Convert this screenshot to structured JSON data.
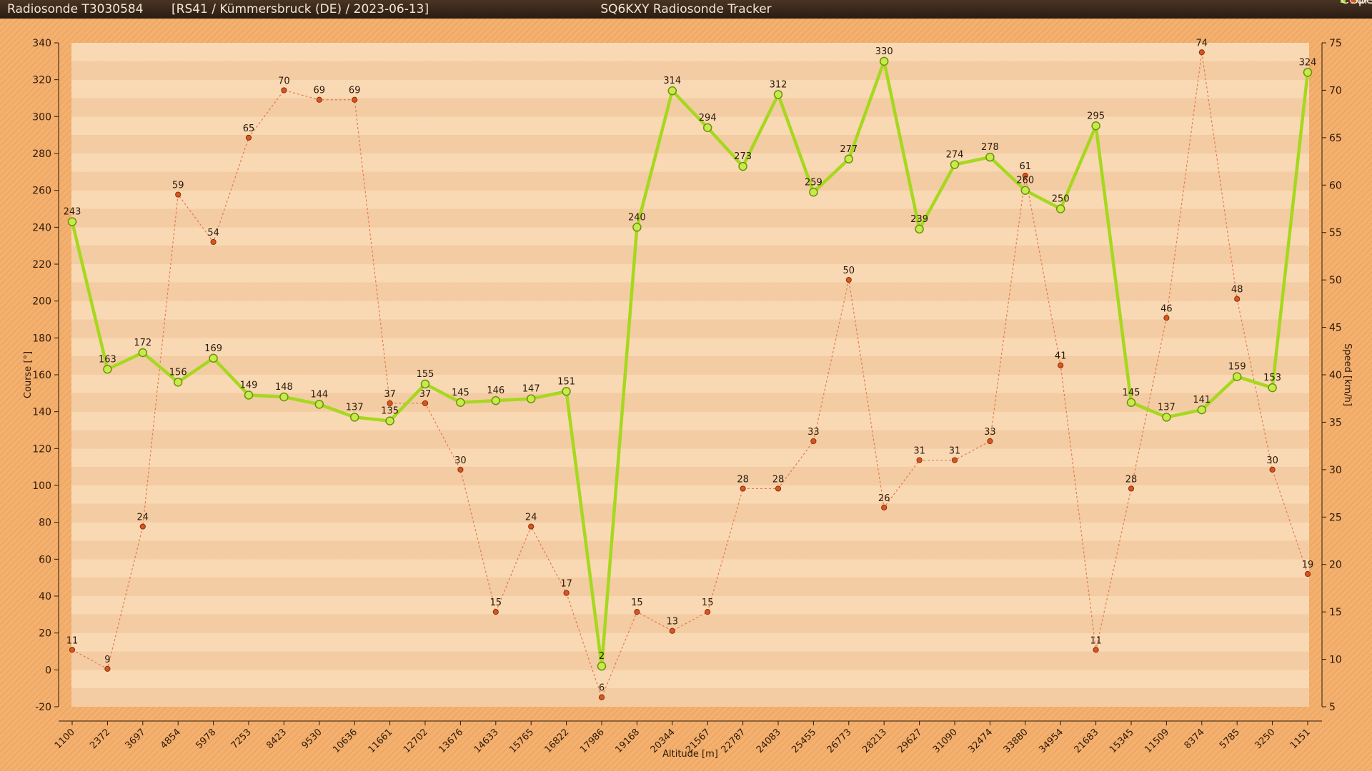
{
  "header": {
    "sonde_id": "Radiosonde T3030584",
    "info": "[RS41 / Kümmersbruck (DE) / 2023-06-13]",
    "app_name": "SQ6KXY Radiosonde Tracker"
  },
  "colors": {
    "course": "#a6d81e",
    "speed": "#d8561e",
    "background": "#f4b06e",
    "plot_band_light": "#f9d9b4",
    "plot_band_dark": "#f3cca3"
  },
  "chart_data": {
    "type": "line",
    "categories": [
      "1100",
      "2372",
      "3697",
      "4854",
      "5978",
      "7253",
      "8423",
      "9530",
      "10636",
      "11661",
      "12702",
      "13676",
      "14633",
      "15765",
      "16822",
      "17986",
      "19168",
      "20344",
      "21567",
      "22787",
      "24083",
      "25455",
      "26773",
      "28213",
      "29627",
      "31090",
      "32474",
      "33880",
      "34954",
      "21683",
      "15345",
      "11509",
      "8374",
      "5785",
      "3250",
      "1151"
    ],
    "xlabel": "Altitude [m]",
    "series": [
      {
        "name": "Course [°]",
        "axis": "left",
        "values": [
          243,
          163,
          172,
          156,
          169,
          149,
          148,
          144,
          137,
          135,
          155,
          145,
          146,
          147,
          151,
          2,
          240,
          314,
          294,
          273,
          312,
          259,
          277,
          330,
          239,
          274,
          278,
          260,
          250,
          295,
          145,
          137,
          141,
          159,
          153,
          324
        ]
      },
      {
        "name": "Speed [km/h]",
        "axis": "right",
        "values": [
          11,
          9,
          24,
          59,
          54,
          65,
          70,
          69,
          69,
          37,
          37,
          30,
          15,
          24,
          17,
          6,
          15,
          13,
          15,
          28,
          28,
          33,
          50,
          26,
          31,
          31,
          33,
          61,
          41,
          11,
          28,
          46,
          74,
          48,
          30,
          19
        ]
      }
    ],
    "left_axis": {
      "label": "Course [°]",
      "min": -20,
      "max": 340,
      "step": 20
    },
    "right_axis": {
      "label": "Speed [km/h]",
      "min": 5,
      "max": 75,
      "step": 5
    },
    "legend_position": "top-right",
    "grid": true
  }
}
